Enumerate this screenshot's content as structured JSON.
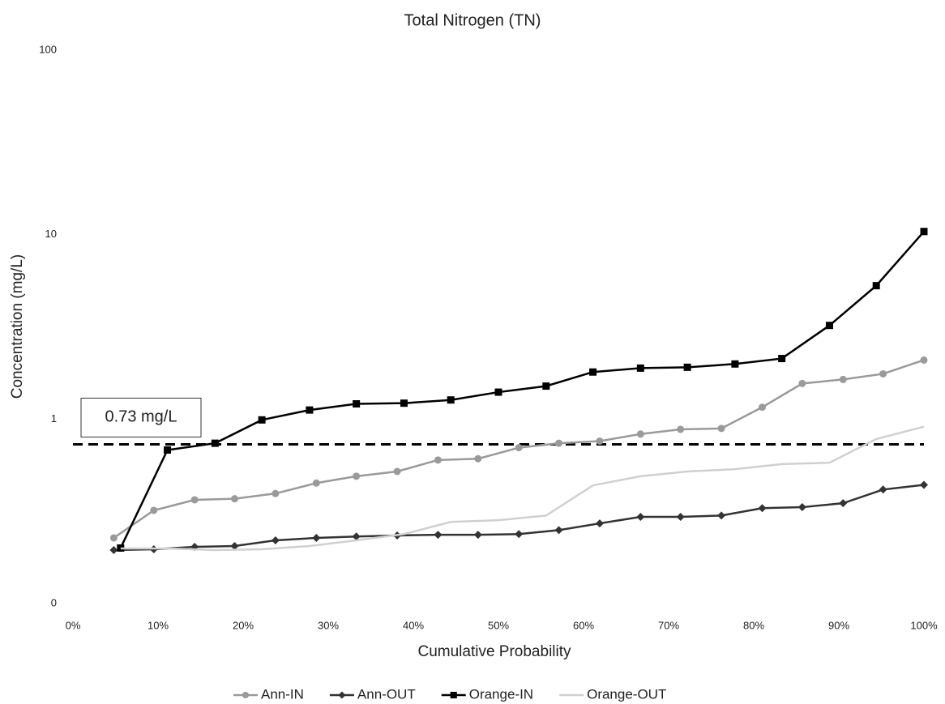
{
  "chart_data": {
    "type": "line",
    "title": "Total Nitrogen (TN)",
    "x_label": "Cumulative Probability",
    "y_label": "Concentration (mg/L)",
    "log_scale": true,
    "xlim": [
      0,
      100
    ],
    "xticks": [
      {
        "value": 0,
        "label": "0%"
      },
      {
        "value": 10,
        "label": "10%"
      },
      {
        "value": 20,
        "label": "20%"
      },
      {
        "value": 30,
        "label": "30%"
      },
      {
        "value": 40,
        "label": "40%"
      },
      {
        "value": 50,
        "label": "50%"
      },
      {
        "value": 60,
        "label": "60%"
      },
      {
        "value": 70,
        "label": "70%"
      },
      {
        "value": 80,
        "label": "80%"
      },
      {
        "value": 90,
        "label": "90%"
      },
      {
        "value": 100,
        "label": "100%"
      }
    ],
    "ylim": [
      0.1,
      100
    ],
    "yticks": [
      {
        "value": 0.1,
        "label": "0"
      },
      1,
      10,
      100
    ],
    "reference_line": {
      "value": 0.73,
      "label": "0.73 mg/L",
      "color": "#000000"
    },
    "series": [
      {
        "name": "Ann-IN",
        "color": "#9a9a9a",
        "marker": "circle",
        "x": [
          4.8,
          9.5,
          14.3,
          19.0,
          23.8,
          28.6,
          33.3,
          38.1,
          42.9,
          47.6,
          52.4,
          57.1,
          61.9,
          66.7,
          71.4,
          76.2,
          81.0,
          85.7,
          90.5,
          95.2,
          100
        ],
        "values": [
          0.227,
          0.32,
          0.365,
          0.37,
          0.395,
          0.45,
          0.49,
          0.52,
          0.6,
          0.61,
          0.7,
          0.74,
          0.76,
          0.83,
          0.88,
          0.89,
          1.16,
          1.56,
          1.64,
          1.76,
          2.09
        ]
      },
      {
        "name": "Ann-OUT",
        "color": "#333333",
        "marker": "diamond",
        "x": [
          4.8,
          9.5,
          14.3,
          19.0,
          23.8,
          28.6,
          33.3,
          38.1,
          42.9,
          47.6,
          52.4,
          57.1,
          61.9,
          66.7,
          71.4,
          76.2,
          81.0,
          85.7,
          90.5,
          95.2,
          100
        ],
        "values": [
          0.195,
          0.197,
          0.203,
          0.205,
          0.22,
          0.227,
          0.231,
          0.234,
          0.236,
          0.236,
          0.238,
          0.25,
          0.272,
          0.295,
          0.295,
          0.3,
          0.329,
          0.333,
          0.35,
          0.415,
          0.44
        ]
      },
      {
        "name": "Orange-IN",
        "color": "#000000",
        "marker": "square",
        "x": [
          5.6,
          11.1,
          16.7,
          22.2,
          27.8,
          33.3,
          38.9,
          44.4,
          50.0,
          55.6,
          61.1,
          66.7,
          72.2,
          77.8,
          83.3,
          88.9,
          94.4,
          100
        ],
        "values": [
          0.2,
          0.68,
          0.74,
          0.99,
          1.12,
          1.21,
          1.22,
          1.27,
          1.4,
          1.51,
          1.8,
          1.89,
          1.91,
          1.99,
          2.13,
          3.22,
          5.29,
          10.4
        ]
      },
      {
        "name": "Orange-OUT",
        "color": "#d0d0d0",
        "x": [
          5.6,
          11.1,
          16.7,
          22.2,
          27.8,
          33.3,
          38.9,
          44.4,
          50.0,
          55.6,
          61.1,
          66.7,
          72.2,
          77.8,
          83.3,
          88.9,
          94.4,
          100
        ],
        "values": [
          0.199,
          0.199,
          0.195,
          0.197,
          0.205,
          0.22,
          0.238,
          0.277,
          0.283,
          0.3,
          0.437,
          0.49,
          0.52,
          0.535,
          0.57,
          0.58,
          0.78,
          0.91
        ]
      }
    ]
  }
}
